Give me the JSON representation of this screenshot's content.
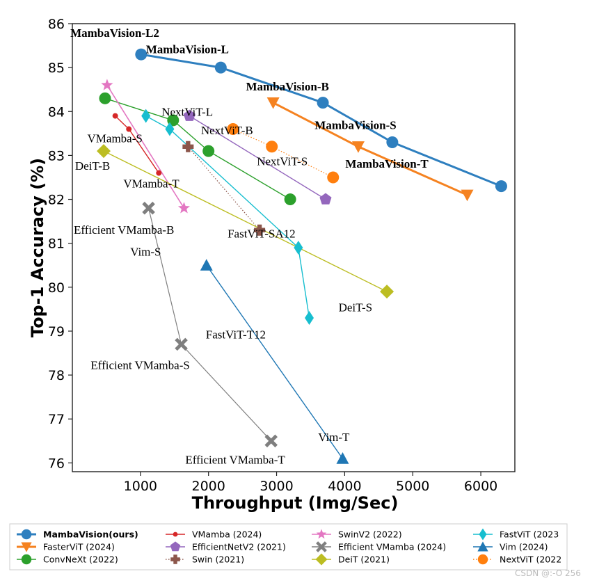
{
  "chart_data": {
    "type": "line",
    "xlabel": "Throughput (Img/Sec)",
    "ylabel": "Top-1 Accuracy (%)",
    "xlim": [
      0,
      6500
    ],
    "ylim": [
      75.8,
      86
    ],
    "xticks": [
      1000,
      2000,
      3000,
      4000,
      5000,
      6000
    ],
    "yticks": [
      76,
      77,
      78,
      79,
      80,
      81,
      82,
      83,
      84,
      85,
      86
    ],
    "series": [
      {
        "name": "MambaVision(ours)",
        "color": "#2e7fbf",
        "marker": "circle",
        "style": "solid",
        "width": 3,
        "x": [
          1010,
          2180,
          3680,
          4700,
          6300
        ],
        "y": [
          85.3,
          85.0,
          84.2,
          83.3,
          82.3
        ]
      },
      {
        "name": "FasterViT (2024)",
        "color": "#f58220",
        "marker": "triangle-down",
        "style": "solid",
        "width": 3,
        "x": [
          2950,
          4200,
          5800
        ],
        "y": [
          84.2,
          83.2,
          82.1
        ]
      },
      {
        "name": "ConvNeXt (2022)",
        "color": "#2ca02c",
        "marker": "circle",
        "style": "solid",
        "width": 1.4,
        "x": [
          480,
          1480,
          2000,
          3200
        ],
        "y": [
          84.3,
          83.8,
          83.1,
          82.0
        ]
      },
      {
        "name": "VMamba (2024)",
        "color": "#d62728",
        "marker": "small-circle",
        "style": "solid",
        "width": 1.4,
        "x": [
          630,
          830,
          1270
        ],
        "y": [
          83.9,
          83.6,
          82.6
        ]
      },
      {
        "name": "EfficientNetV2 (2021)",
        "color": "#9467bd",
        "marker": "pentagon",
        "style": "solid",
        "width": 1.4,
        "x": [
          1720,
          3720
        ],
        "y": [
          83.9,
          82.0
        ]
      },
      {
        "name": "Swin (2021)",
        "color": "#8c564b",
        "marker": "plus",
        "style": "dotted",
        "width": 1.2,
        "x": [
          1700,
          2750
        ],
        "y": [
          83.2,
          81.3
        ]
      },
      {
        "name": "SwinV2 (2022)",
        "color": "#e377c2",
        "marker": "star",
        "style": "solid",
        "width": 1.6,
        "x": [
          510,
          1640
        ],
        "y": [
          84.6,
          81.8
        ]
      },
      {
        "name": "Efficient VMamba (2024)",
        "color": "#7f7f7f",
        "marker": "x",
        "style": "solid",
        "width": 1.2,
        "x": [
          1120,
          1600,
          2920
        ],
        "y": [
          81.8,
          78.7,
          76.5
        ]
      },
      {
        "name": "DeiT (2021)",
        "color": "#bcbd22",
        "marker": "diamond",
        "style": "solid",
        "width": 1.4,
        "x": [
          460,
          4620
        ],
        "y": [
          83.1,
          79.9
        ]
      },
      {
        "name": "FastViT (2023)",
        "color": "#17becf",
        "marker": "thin-diamond",
        "style": "solid",
        "width": 1.4,
        "x": [
          1080,
          1430,
          3320,
          3480
        ],
        "y": [
          83.9,
          83.6,
          80.9,
          79.3
        ]
      },
      {
        "name": "Vim (2024)",
        "color": "#1f77b4",
        "marker": "triangle-up",
        "style": "solid",
        "width": 1.4,
        "x": [
          1970,
          3970
        ],
        "y": [
          80.5,
          76.1
        ]
      },
      {
        "name": "NextViT (2022)",
        "color": "#ff7f0e",
        "marker": "circle",
        "style": "dotted",
        "width": 1.2,
        "x": [
          2360,
          2930,
          3830
        ],
        "y": [
          83.6,
          83.2,
          82.5
        ]
      }
    ],
    "annotations": [
      {
        "text": "MambaVision-L2",
        "bold": true,
        "x": -30,
        "y": 85.7
      },
      {
        "text": "MambaVision-L",
        "bold": true,
        "x": 1080,
        "y": 85.33
      },
      {
        "text": "MambaVision-B",
        "bold": true,
        "x": 2550,
        "y": 84.48
      },
      {
        "text": "MambaVision-S",
        "bold": true,
        "x": 3560,
        "y": 83.6
      },
      {
        "text": "MambaVision-T",
        "bold": true,
        "x": 4010,
        "y": 82.72
      },
      {
        "text": "NextViT-L",
        "bold": false,
        "x": 1310,
        "y": 83.9
      },
      {
        "text": "NextViT-B",
        "bold": false,
        "x": 1890,
        "y": 83.48
      },
      {
        "text": "NextViT-S",
        "bold": false,
        "x": 2710,
        "y": 82.78
      },
      {
        "text": "VMamba-S",
        "bold": false,
        "x": 220,
        "y": 83.3
      },
      {
        "text": "DeiT-B",
        "bold": false,
        "x": 40,
        "y": 82.67
      },
      {
        "text": "VMamba-T",
        "bold": false,
        "x": 750,
        "y": 82.27
      },
      {
        "text": "Efficient VMamba-B",
        "bold": false,
        "x": 20,
        "y": 81.22
      },
      {
        "text": "FastViT-SA12",
        "bold": false,
        "x": 2280,
        "y": 81.13
      },
      {
        "text": "Vim-S",
        "bold": false,
        "x": 850,
        "y": 80.72
      },
      {
        "text": "DeiT-S",
        "bold": false,
        "x": 3910,
        "y": 79.45
      },
      {
        "text": "FastViT-T12",
        "bold": false,
        "x": 1960,
        "y": 78.83
      },
      {
        "text": "Efficient VMamba-S",
        "bold": false,
        "x": 270,
        "y": 78.14
      },
      {
        "text": "Efficient VMamba-T",
        "bold": false,
        "x": 1660,
        "y": 75.98
      },
      {
        "text": "Vim-T",
        "bold": false,
        "x": 3610,
        "y": 76.5
      }
    ],
    "legend": {
      "position": "bottom",
      "rows": [
        [
          "MambaVision(ours)",
          "VMamba (2024)",
          "SwinV2 (2022)",
          "FastViT (2023"
        ],
        [
          "FasterViT (2024)",
          "EfficientNetV2 (2021)",
          "Efficient VMamba (2024)",
          "Vim (2024)"
        ],
        [
          "ConvNeXt (2022)",
          "Swin (2021)",
          "DeiT (2021)",
          "NextViT (2022"
        ]
      ],
      "bold_entry": "MambaVision(ours)"
    }
  },
  "watermark": "CSDN @:-O  256"
}
